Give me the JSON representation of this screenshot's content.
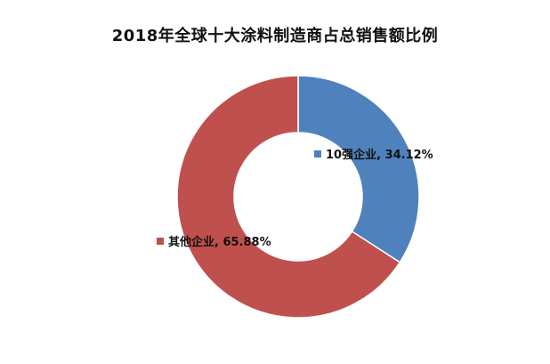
{
  "chart_data": {
    "type": "pie",
    "style": "donut",
    "title": "2018年全球十大涂料制造商占总销售额比例",
    "slices": [
      {
        "label": "10强企业",
        "value": 34.12,
        "display": "10强企业, 34.12%",
        "color": "#4f81bd"
      },
      {
        "label": "其他企业",
        "value": 65.88,
        "display": "其他企业, 65.88%",
        "color": "#c0504d"
      }
    ],
    "start_angle": "12 o'clock",
    "direction": "clockwise",
    "legend": "none"
  }
}
